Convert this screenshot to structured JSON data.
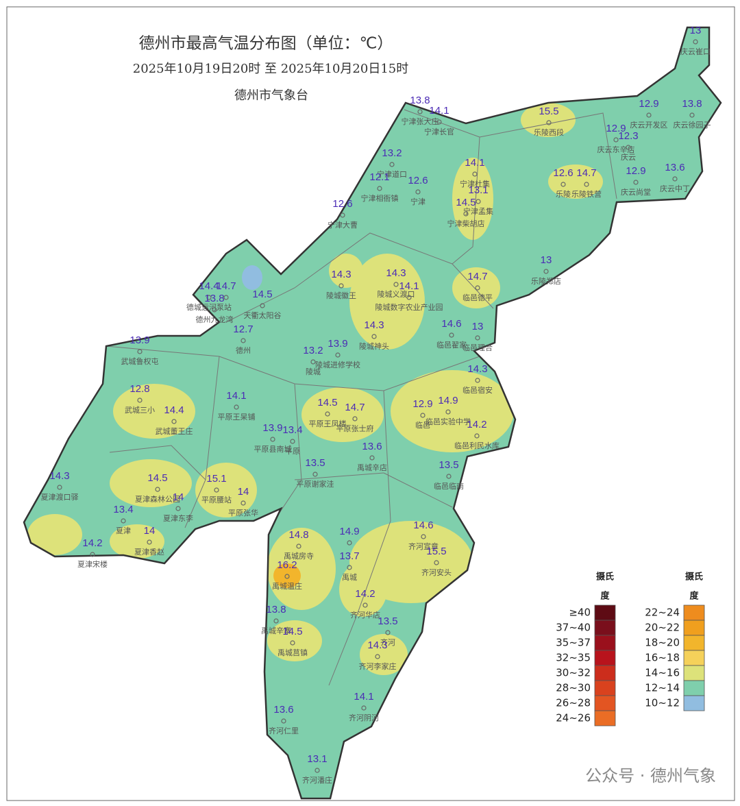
{
  "header": {
    "title": "德州市最高气温分布图（单位：℃）",
    "subtitle": "2025年10月19日20时  至  2025年10月20日15时",
    "issuer": "德州市气象台"
  },
  "stations": [
    {
      "name": "庆云崔口",
      "value": 13
    },
    {
      "name": "宁津张大庄",
      "value": 13.8
    },
    {
      "name": "宁津长官",
      "value": 14.1
    },
    {
      "name": "乐陵西段",
      "value": 15.5
    },
    {
      "name": "庆云开发区",
      "value": 12.9
    },
    {
      "name": "庆云徐园子",
      "value": 13.8
    },
    {
      "name": "庆云东辛店",
      "value": 12.9
    },
    {
      "name": "庆云",
      "value": 12.3
    },
    {
      "name": "宁津道口",
      "value": 13.2
    },
    {
      "name": "宁津杜集",
      "value": 14.1
    },
    {
      "name": "宁津相衙镇",
      "value": 12.1
    },
    {
      "name": "宁津",
      "value": 12.6
    },
    {
      "name": "宁津孟集",
      "value": 13.1
    },
    {
      "name": "宁津柴胡店",
      "value": 14.5
    },
    {
      "name": "宁津大曹",
      "value": 12.6
    },
    {
      "name": "乐陵",
      "value": 12.6
    },
    {
      "name": "乐陵铁营",
      "value": 14.7
    },
    {
      "name": "庆云尚堂",
      "value": 12.9
    },
    {
      "name": "庆云中丁",
      "value": 13.6
    },
    {
      "name": "乐陵郑店",
      "value": 13
    },
    {
      "name": "临邑德平",
      "value": 14.7
    },
    {
      "name": "陵城徽王",
      "value": 14.3
    },
    {
      "name": "陵城义渡口",
      "value": 14.3
    },
    {
      "name": "陵城数字农业产业园",
      "value": 14.1
    },
    {
      "name": "德城运河泵站",
      "value": 14.4
    },
    {
      "value": 14.7
    },
    {
      "name": "德州九龙湾",
      "value": 13.8
    },
    {
      "name": "天衢太阳谷",
      "value": 14.5
    },
    {
      "name": "德州",
      "value": 12.7
    },
    {
      "name": "陵城神头",
      "value": 14.3
    },
    {
      "name": "临邑翟家",
      "value": 14.6
    },
    {
      "name": "临邑理合",
      "value": 13
    },
    {
      "name": "武城鲁权屯",
      "value": 13.9
    },
    {
      "name": "陵城",
      "value": 13.2
    },
    {
      "name": "陵城进修学校",
      "value": 13.9
    },
    {
      "name": "临邑宿安",
      "value": 14.3
    },
    {
      "name": "武城三小",
      "value": 12.8
    },
    {
      "name": "平原王杲铺",
      "value": 14.1
    },
    {
      "name": "武城董王庄",
      "value": 14.4
    },
    {
      "name": "平原王凤楼",
      "value": 14.5
    },
    {
      "name": "平原张士府",
      "value": 14.7
    },
    {
      "name": "临邑",
      "value": 12.9
    },
    {
      "name": "临邑实验中学",
      "value": 14.9
    },
    {
      "name": "平原县南城",
      "value": 13.9
    },
    {
      "name": "平原",
      "value": 13.4
    },
    {
      "name": "临邑利民水库",
      "value": 14.2
    },
    {
      "name": "禹城辛店",
      "value": 13.6
    },
    {
      "name": "平原谢家洼",
      "value": 13.5
    },
    {
      "name": "临邑临南",
      "value": 13.5
    },
    {
      "name": "夏津渡口驿",
      "value": 14.3
    },
    {
      "name": "夏津森林公园",
      "value": 14.5
    },
    {
      "name": "平原腰站",
      "value": 15.1
    },
    {
      "name": "平原张华",
      "value": 14
    },
    {
      "name": "夏津东李",
      "value": 14
    },
    {
      "name": "夏津",
      "value": 13.4
    },
    {
      "name": "夏津香赵",
      "value": 14
    },
    {
      "name": "夏津宋楼",
      "value": 14.2
    },
    {
      "name": "禹城房寺",
      "value": 14.8
    },
    {
      "value": 14.9
    },
    {
      "name": "禹城",
      "value": 13.7
    },
    {
      "name": "齐河宣章",
      "value": 14.6
    },
    {
      "name": "齐河安头",
      "value": 15.5
    },
    {
      "name": "禹城温庄",
      "value": 16.2
    },
    {
      "name": "齐河华店",
      "value": 14.2
    },
    {
      "name": "禹城辛寨",
      "value": 13.8
    },
    {
      "name": "齐河",
      "value": 13.5
    },
    {
      "name": "禹城莒镇",
      "value": 14.5
    },
    {
      "name": "齐河李家庄",
      "value": 14.3
    },
    {
      "name": "齐河阴河",
      "value": 14.1
    },
    {
      "name": "齐河仁里",
      "value": 13.6
    },
    {
      "name": "齐河潘庄",
      "value": 13.1
    }
  ],
  "legend": {
    "title_lines": [
      "摄氏",
      "度"
    ],
    "columns": [
      [
        {
          "label": "≥40",
          "color": "#5e0b14"
        },
        {
          "label": "37~40",
          "color": "#7a0f1c"
        },
        {
          "label": "35~37",
          "color": "#9a101c"
        },
        {
          "label": "32~35",
          "color": "#b8131c"
        },
        {
          "label": "30~32",
          "color": "#cc2d1c"
        },
        {
          "label": "28~30",
          "color": "#d9421e"
        },
        {
          "label": "26~28",
          "color": "#e35522"
        },
        {
          "label": "24~26",
          "color": "#ea6d25"
        }
      ],
      [
        {
          "label": "22~24",
          "color": "#ee8c1e"
        },
        {
          "label": "20~22",
          "color": "#f09f1e"
        },
        {
          "label": "18~20",
          "color": "#f2b52c"
        },
        {
          "label": "16~18",
          "color": "#f5d15a"
        },
        {
          "label": "14~16",
          "color": "#dde27a"
        },
        {
          "label": "12~14",
          "color": "#7fcfac"
        },
        {
          "label": "10~12",
          "color": "#91bde0"
        }
      ]
    ]
  },
  "watermark": "公众号 · 德州气象"
}
